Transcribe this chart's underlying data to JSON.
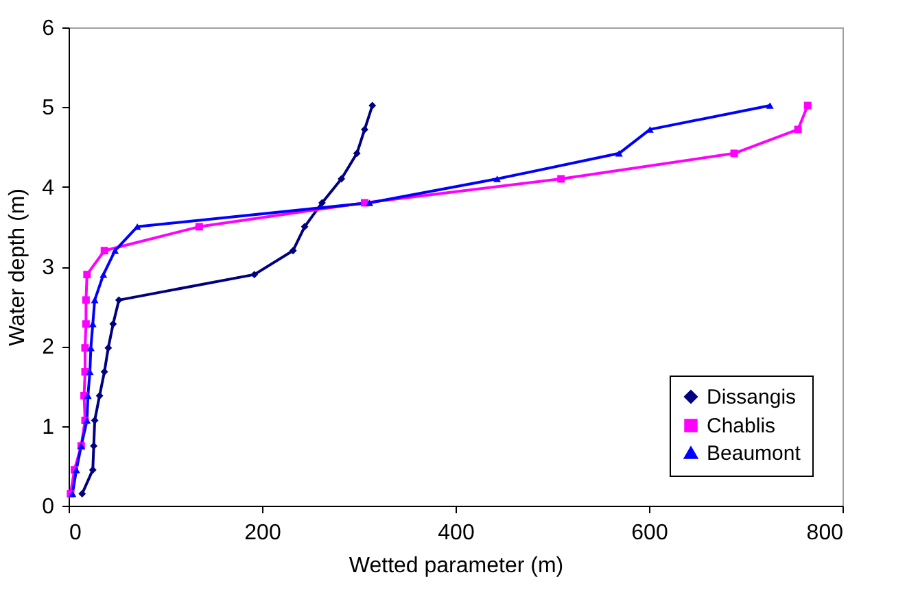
{
  "chart_data": {
    "type": "line",
    "xlabel": "Wetted parameter (m)",
    "ylabel": "Water depth (m)",
    "xlim": [
      0,
      800
    ],
    "xticks": [
      0,
      200,
      400,
      600,
      800
    ],
    "ylim": [
      0,
      6
    ],
    "yticks": [
      0,
      1,
      2,
      3,
      4,
      5,
      6
    ],
    "legend": "bottom right",
    "grid": false,
    "line_style": "solid",
    "series": [
      {
        "name": "Dissangis",
        "color": "#000080",
        "marker": "diamond",
        "x": [
          14,
          25,
          26,
          27,
          32,
          37,
          41,
          46,
          52,
          192,
          232,
          244,
          262,
          282,
          298,
          306,
          314
        ],
        "values": [
          0.15,
          0.45,
          0.75,
          1.07,
          1.38,
          1.68,
          1.98,
          2.28,
          2.58,
          2.9,
          3.2,
          3.5,
          3.8,
          4.1,
          4.42,
          4.72,
          5.02
        ]
      },
      {
        "name": "Chablis",
        "color": "#ff00ff",
        "marker": "square",
        "x": [
          2,
          6,
          13,
          17,
          16,
          17,
          17,
          18,
          18,
          19,
          37,
          135,
          306,
          509,
          688,
          754,
          764
        ],
        "values": [
          0.15,
          0.45,
          0.75,
          1.07,
          1.38,
          1.68,
          1.98,
          2.28,
          2.58,
          2.9,
          3.2,
          3.5,
          3.8,
          4.1,
          4.42,
          4.72,
          5.02
        ]
      },
      {
        "name": "Beaumont",
        "color": "#0000ff",
        "marker": "triangle",
        "x": [
          4,
          8,
          13,
          19,
          20,
          22,
          23,
          25,
          27,
          36,
          48,
          71,
          311,
          443,
          569,
          601,
          725
        ],
        "values": [
          0.15,
          0.45,
          0.75,
          1.07,
          1.38,
          1.68,
          1.98,
          2.28,
          2.58,
          2.9,
          3.2,
          3.5,
          3.8,
          4.1,
          4.42,
          4.72,
          5.02
        ]
      }
    ]
  }
}
